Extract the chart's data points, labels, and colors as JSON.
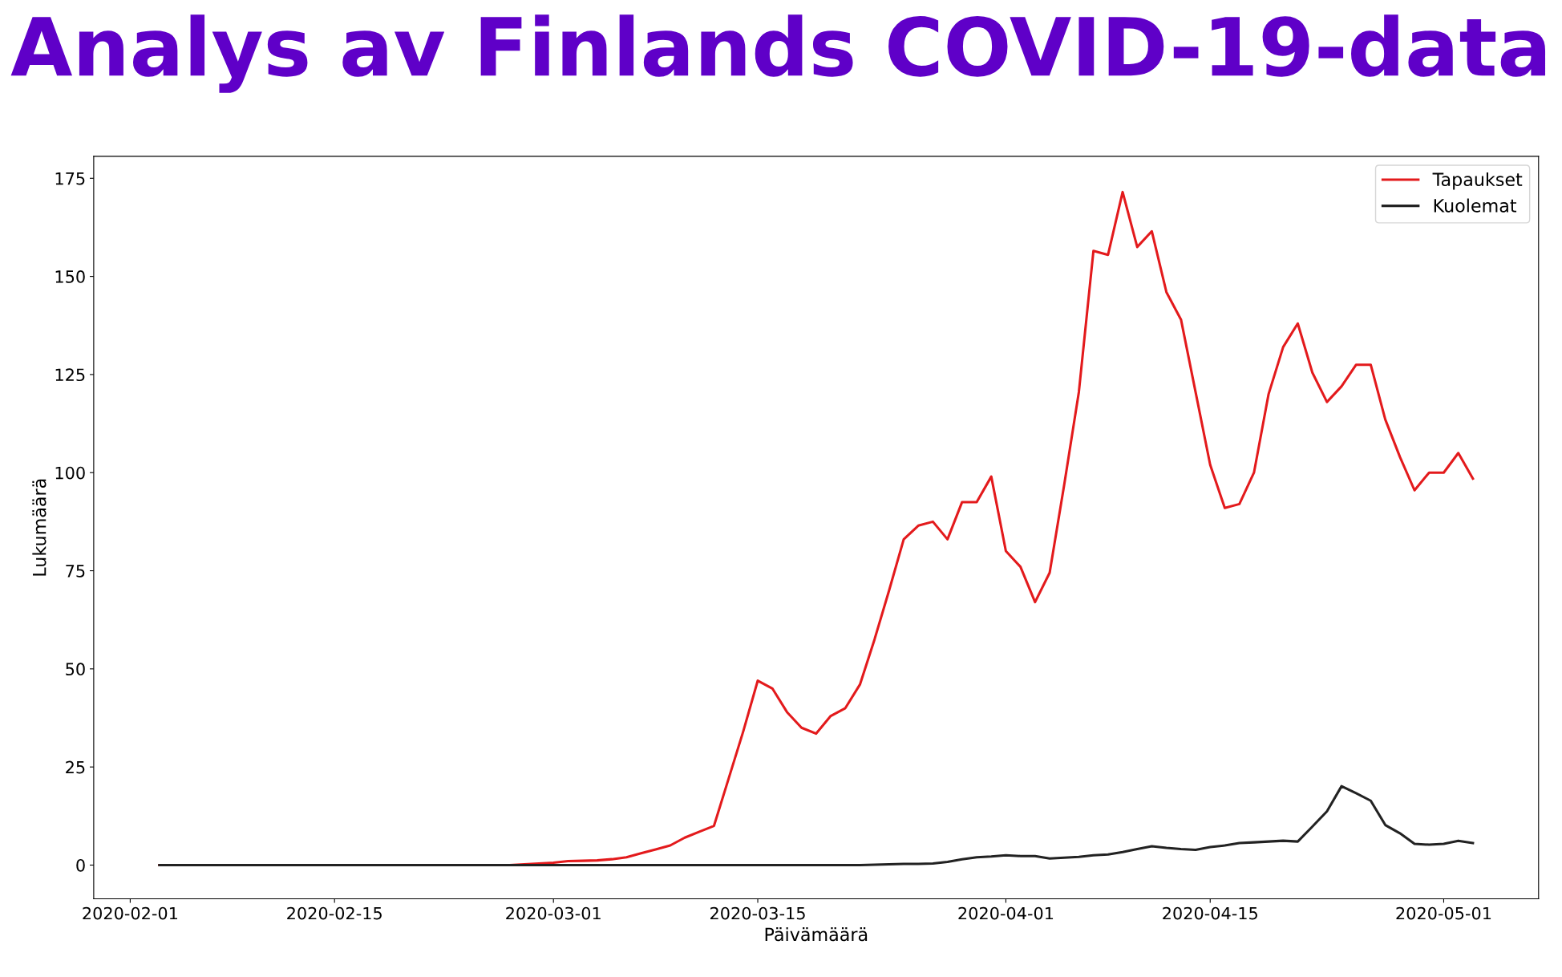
{
  "chart_data": {
    "type": "line",
    "title": "Analys av Finlands COVID-19-data",
    "xlabel": "Päivämäärä",
    "ylabel": "Lukumäärä",
    "series": [
      {
        "name": "Tapaukset",
        "color": "#e31a1c",
        "x": [
          "2020-02-03",
          "2020-02-27",
          "2020-02-28",
          "2020-02-29",
          "2020-03-01",
          "2020-03-02",
          "2020-03-03",
          "2020-03-04",
          "2020-03-05",
          "2020-03-06",
          "2020-03-07",
          "2020-03-08",
          "2020-03-09",
          "2020-03-10",
          "2020-03-11",
          "2020-03-12",
          "2020-03-13",
          "2020-03-14",
          "2020-03-15",
          "2020-03-16",
          "2020-03-17",
          "2020-03-18",
          "2020-03-19",
          "2020-03-20",
          "2020-03-21",
          "2020-03-22",
          "2020-03-23",
          "2020-03-24",
          "2020-03-25",
          "2020-03-26",
          "2020-03-27",
          "2020-03-28",
          "2020-03-29",
          "2020-03-30",
          "2020-03-31",
          "2020-04-01",
          "2020-04-02",
          "2020-04-03",
          "2020-04-04",
          "2020-04-05",
          "2020-04-06",
          "2020-04-07",
          "2020-04-08",
          "2020-04-09",
          "2020-04-10",
          "2020-04-11",
          "2020-04-12",
          "2020-04-13",
          "2020-04-14",
          "2020-04-15",
          "2020-04-16",
          "2020-04-17",
          "2020-04-18",
          "2020-04-19",
          "2020-04-20",
          "2020-04-21",
          "2020-04-22",
          "2020-04-23",
          "2020-04-24",
          "2020-04-25",
          "2020-04-26",
          "2020-04-27",
          "2020-04-28",
          "2020-04-29",
          "2020-04-30",
          "2020-05-01",
          "2020-05-02",
          "2020-05-03"
        ],
        "values": [
          0,
          0,
          0.2,
          0.4,
          0.6,
          1,
          1.1,
          1.2,
          1.5,
          2,
          3,
          4,
          5,
          7,
          8.5,
          10,
          22,
          34,
          47,
          45,
          39,
          35,
          33.5,
          38,
          40,
          46,
          57.5,
          70,
          83,
          86.5,
          87.5,
          83,
          92.5,
          92.5,
          99,
          80,
          76,
          67,
          74.5,
          97,
          120.5,
          156.5,
          155.5,
          171.5,
          157.5,
          161.5,
          146,
          139,
          120.5,
          102,
          91,
          92,
          100,
          120,
          132,
          138,
          125.5,
          118,
          122,
          127.5,
          127.5,
          113.5,
          104,
          95.5,
          100,
          100,
          105,
          98.5
        ]
      },
      {
        "name": "Kuolemat",
        "color": "#222222",
        "x": [
          "2020-02-03",
          "2020-03-22",
          "2020-03-23",
          "2020-03-24",
          "2020-03-25",
          "2020-03-26",
          "2020-03-27",
          "2020-03-28",
          "2020-03-29",
          "2020-03-30",
          "2020-03-31",
          "2020-04-01",
          "2020-04-02",
          "2020-04-03",
          "2020-04-04",
          "2020-04-05",
          "2020-04-06",
          "2020-04-07",
          "2020-04-08",
          "2020-04-09",
          "2020-04-10",
          "2020-04-11",
          "2020-04-12",
          "2020-04-13",
          "2020-04-14",
          "2020-04-15",
          "2020-04-16",
          "2020-04-17",
          "2020-04-18",
          "2020-04-19",
          "2020-04-20",
          "2020-04-21",
          "2020-04-22",
          "2020-04-23",
          "2020-04-24",
          "2020-04-25",
          "2020-04-26",
          "2020-04-27",
          "2020-04-28",
          "2020-04-29",
          "2020-04-30",
          "2020-05-01",
          "2020-05-02",
          "2020-05-03"
        ],
        "values": [
          0,
          0,
          0.1,
          0.2,
          0.3,
          0.3,
          0.4,
          0.8,
          1.5,
          2,
          2.2,
          2.5,
          2.3,
          2.3,
          1.7,
          1.9,
          2.1,
          2.5,
          2.7,
          3.3,
          4.1,
          4.8,
          4.4,
          4.1,
          3.9,
          4.6,
          5,
          5.6,
          5.8,
          6,
          6.2,
          6,
          9.8,
          13.7,
          20.1,
          18.3,
          16.4,
          10.2,
          8.1,
          5.4,
          5.2,
          5.4,
          6.2,
          5.6
        ]
      }
    ],
    "xlim": [
      "2020-01-29T12:00",
      "2020-05-07T12:00"
    ],
    "xticks": [
      "2020-02-01",
      "2020-02-15",
      "2020-03-01",
      "2020-03-15",
      "2020-04-01",
      "2020-04-15",
      "2020-05-01"
    ],
    "ylim": [
      -8.6,
      180.6
    ],
    "yticks": [
      0,
      25,
      50,
      75,
      100,
      125,
      150,
      175
    ],
    "legend": "top right",
    "grid": false,
    "marker": "none",
    "line_style": "solid"
  }
}
